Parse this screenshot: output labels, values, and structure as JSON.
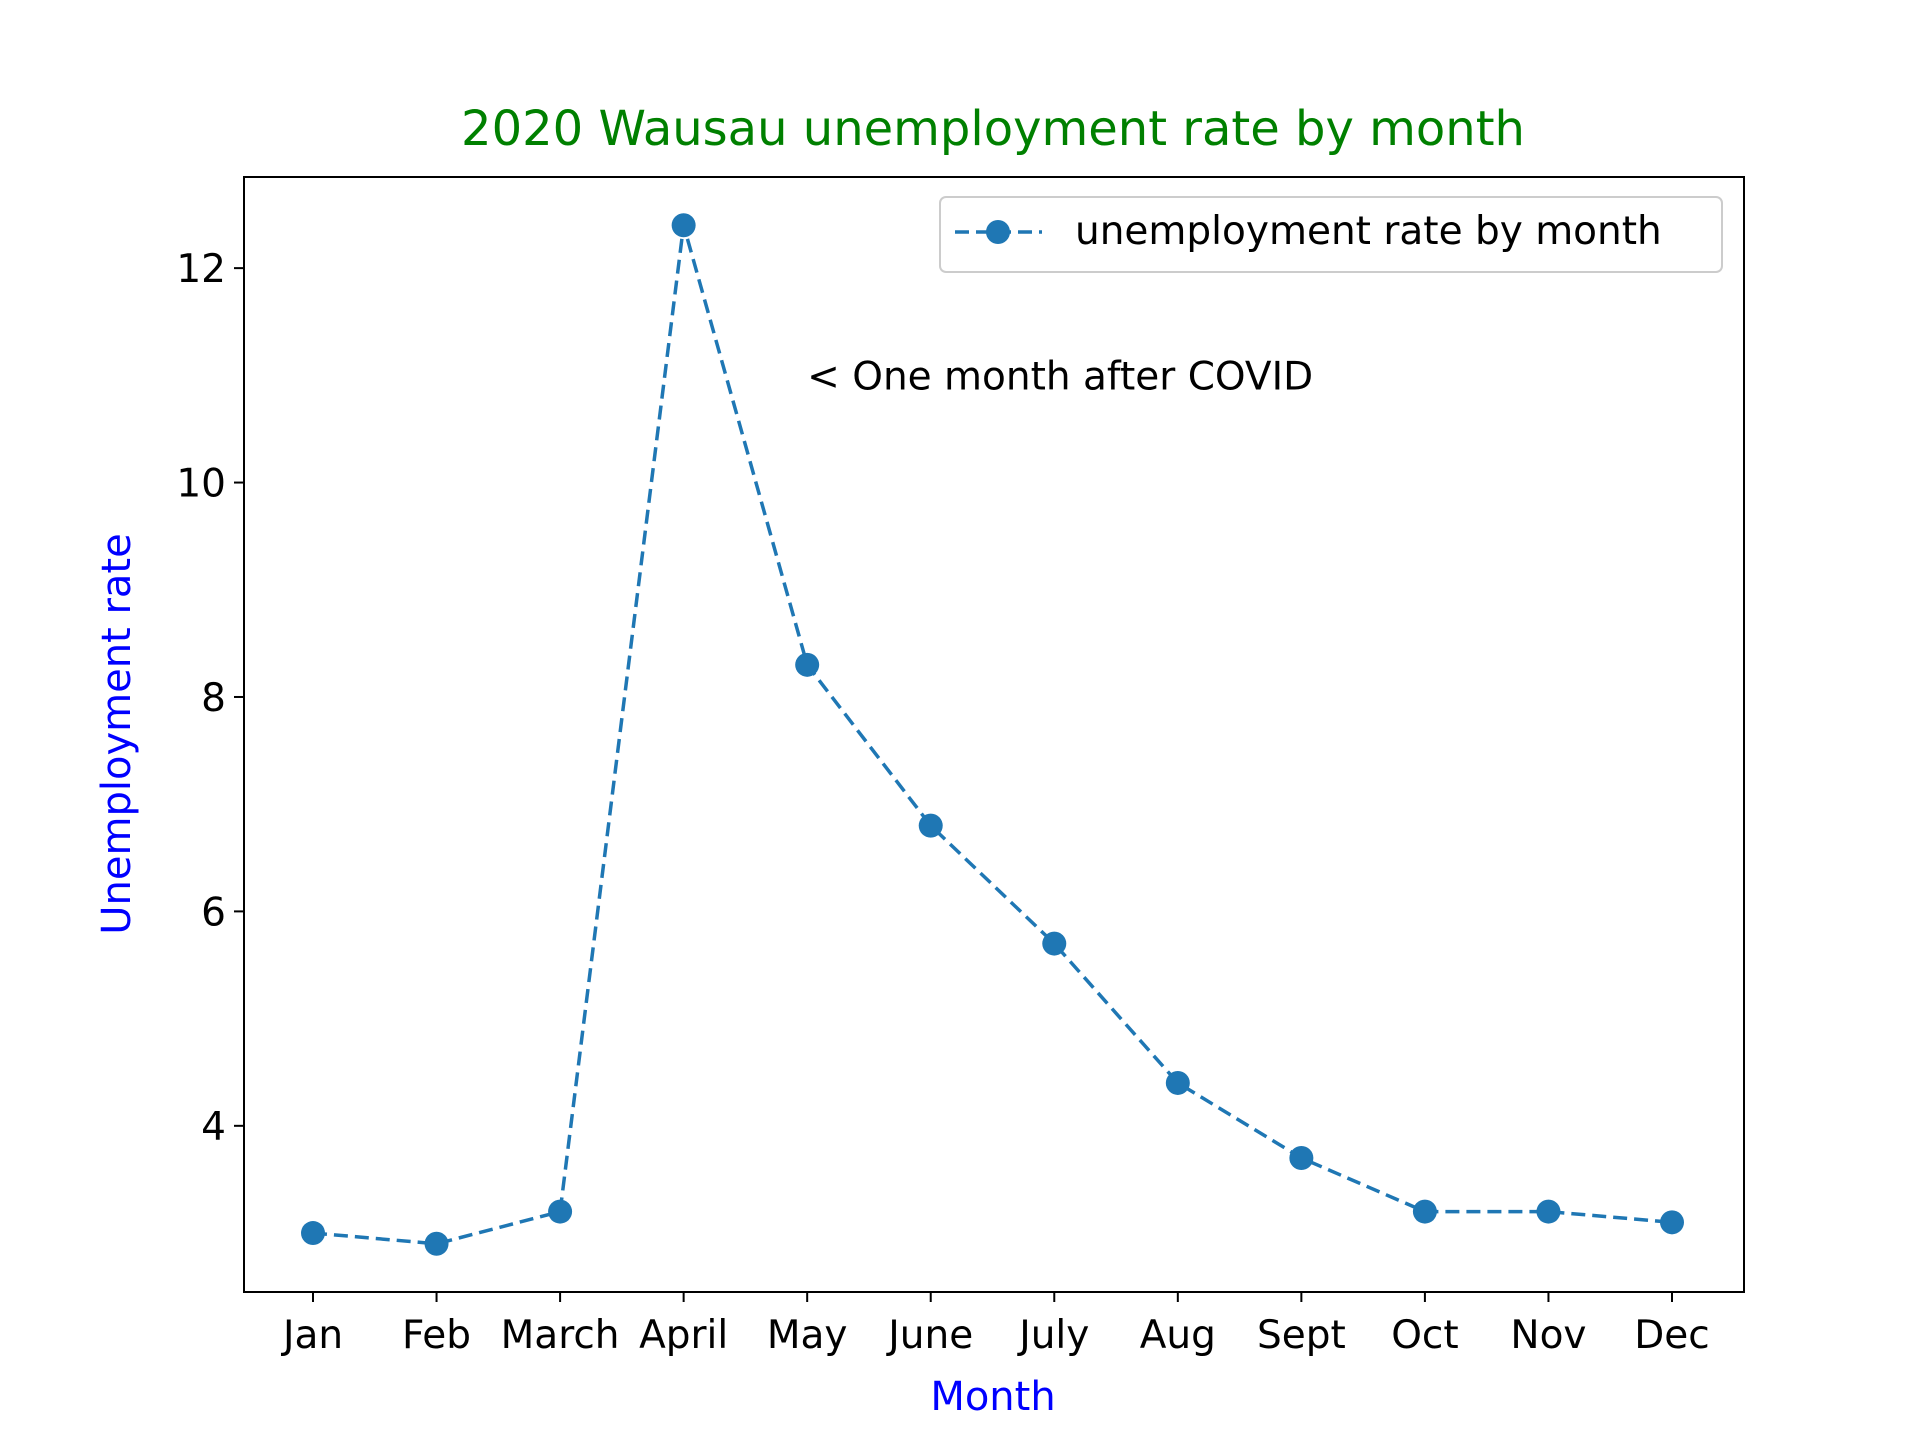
{
  "chart_data": {
    "type": "line",
    "title": "2020 Wausau unemployment rate by month",
    "xlabel": "Month",
    "ylabel": "Unemployment rate",
    "categories": [
      "Jan",
      "Feb",
      "March",
      "April",
      "May",
      "June",
      "July",
      "Aug",
      "Sept",
      "Oct",
      "Nov",
      "Dec"
    ],
    "series": [
      {
        "name": "unemployment rate by month",
        "values": [
          3.0,
          2.9,
          3.2,
          12.4,
          8.3,
          6.8,
          5.7,
          4.4,
          3.7,
          3.2,
          3.2,
          3.1
        ],
        "line_style": "dashed",
        "marker": "circle"
      }
    ],
    "yticks": [
      4,
      6,
      8,
      10,
      12
    ],
    "ylim": [
      2.45,
      12.85
    ],
    "grid": false,
    "legend_position": "top-right",
    "annotations": [
      {
        "text": "< One month after COVID",
        "x": "May",
        "y": 11.0
      }
    ]
  },
  "colors": {
    "series": "#1f77b4",
    "title": "#008000",
    "axis_labels": "#0000ff",
    "axes": "#000000",
    "legend_border": "#cccccc"
  }
}
